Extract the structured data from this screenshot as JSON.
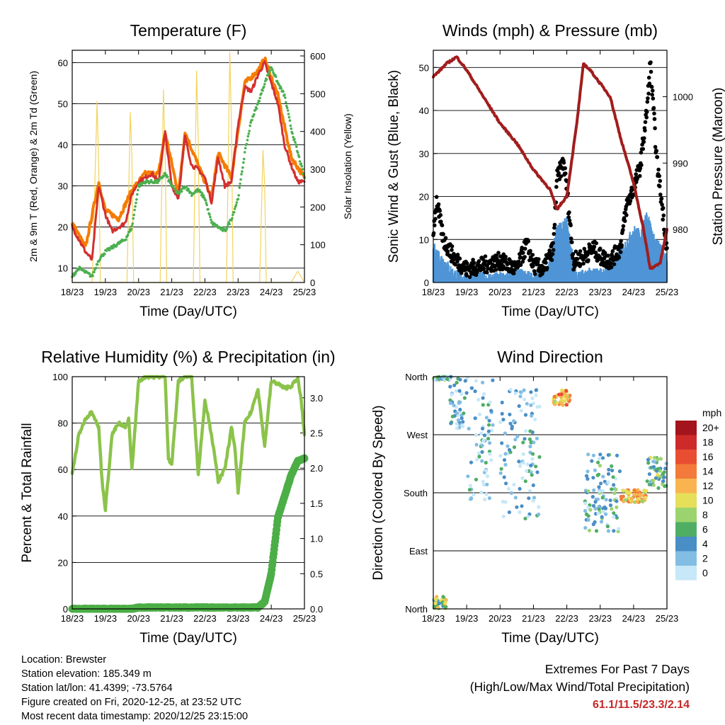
{
  "info": {
    "location": "Location: Brewster",
    "elevation": "Station elevation: 185.349 m",
    "latlon": "Station lat/lon: 41.4399; -73.5764",
    "created": "Figure created on Fri, 2020-12-25, at 23:52 UTC",
    "recent": "Most recent data timestamp: 2020/12/25 23:15:00"
  },
  "extremes": {
    "line1": "Extremes For Past 7 Days",
    "line2": "(High/Low/Max Wind/Total Precipitation)",
    "value": "61.1/11.5/23.3/2.14"
  },
  "chart_data": [
    {
      "type": "line",
      "title": "Temperature (F)",
      "xlabel": "Time (Day/UTC)",
      "ylabel": "2m & 9m T (Red, Orange) & 2m Td (Green)",
      "y2label": "Solar Insolation (Yellow)",
      "x_ticks": [
        "18/23",
        "19/23",
        "20/23",
        "21/23",
        "22/23",
        "23/23",
        "24/23",
        "25/23"
      ],
      "ylim": [
        6.5,
        63
      ],
      "y_ticks": [
        10,
        20,
        30,
        40,
        50,
        60
      ],
      "y2lim": [
        0,
        615
      ],
      "y2_ticks": [
        0,
        100,
        200,
        300,
        400,
        500,
        600
      ],
      "grid": true,
      "series": [
        {
          "name": "2m T",
          "color": "#d32f2f",
          "axis": "y",
          "x": [
            0,
            0.2,
            0.4,
            0.6,
            0.8,
            1,
            1.2,
            1.4,
            1.6,
            1.8,
            2,
            2.2,
            2.4,
            2.6,
            2.8,
            3,
            3.2,
            3.4,
            3.6,
            3.8,
            4,
            4.2,
            4.4,
            4.6,
            4.8,
            5,
            5.2,
            5.4,
            5.6,
            5.8,
            6,
            6.2,
            6.4,
            6.6,
            6.8,
            7
          ],
          "values": [
            20,
            17,
            14,
            12,
            30,
            23,
            19,
            20,
            21,
            28,
            31,
            32,
            33,
            31,
            43,
            30,
            27,
            42,
            35,
            34,
            32,
            26,
            37,
            30,
            31,
            45,
            54,
            53,
            57,
            60,
            55,
            50,
            40,
            35,
            31,
            31
          ]
        },
        {
          "name": "9m T",
          "color": "#f57c00",
          "axis": "y",
          "x": [
            0,
            0.4,
            0.8,
            1,
            1.4,
            1.8,
            2.2,
            2.6,
            2.8,
            3.2,
            3.4,
            3.8,
            4.2,
            4.4,
            4.8,
            5.2,
            5.6,
            5.8,
            6.2,
            6.6,
            7
          ],
          "values": [
            21,
            15,
            31,
            24,
            22,
            29,
            33,
            33,
            43,
            28,
            43,
            35,
            27,
            38,
            32,
            55,
            58,
            61,
            52,
            37,
            32
          ]
        },
        {
          "name": "2m Td",
          "color": "#4caf50",
          "axis": "y",
          "x": [
            0,
            0.2,
            0.4,
            0.6,
            0.8,
            1,
            1.4,
            1.6,
            1.8,
            2,
            2.2,
            2.4,
            2.6,
            2.8,
            3,
            3.2,
            3.4,
            3.6,
            3.8,
            4,
            4.2,
            4.4,
            4.6,
            4.8,
            5,
            5.2,
            5.4,
            5.6,
            5.8,
            6,
            6.2,
            6.4,
            6.6,
            6.8,
            7
          ],
          "values": [
            8,
            10,
            9,
            8,
            12,
            14,
            16,
            17,
            20,
            30,
            31,
            31,
            31,
            33,
            30,
            28,
            30,
            28,
            29,
            27,
            21,
            20,
            19,
            22,
            27,
            38,
            46,
            50,
            55,
            59,
            55,
            52,
            44,
            38,
            32
          ]
        },
        {
          "name": "Solar Insolation",
          "color": "#f3d35b",
          "axis": "y2",
          "x": [
            0,
            0.6,
            0.75,
            0.8,
            0.85,
            1,
            1.65,
            1.75,
            1.8,
            1.85,
            2,
            2.65,
            2.75,
            2.8,
            2.85,
            3,
            3.65,
            3.75,
            3.8,
            3.85,
            4,
            4.65,
            4.75,
            4.8,
            4.85,
            5,
            5.65,
            5.75,
            5.8,
            5.85,
            6,
            6.6,
            6.8,
            7
          ],
          "values": [
            0,
            0,
            480,
            300,
            0,
            0,
            0,
            450,
            330,
            0,
            0,
            0,
            510,
            350,
            0,
            0,
            0,
            560,
            370,
            0,
            0,
            0,
            610,
            420,
            0,
            0,
            0,
            350,
            260,
            0,
            0,
            0,
            30,
            0
          ]
        }
      ]
    },
    {
      "type": "line",
      "title": "Winds (mph) & Pressure (mb)",
      "xlabel": "Time (Day/UTC)",
      "ylabel": "Sonic Wind & Gust (Blue, Black)",
      "y2label": "Station Pressure (Maroon)",
      "x_ticks": [
        "18/23",
        "19/23",
        "20/23",
        "21/23",
        "22/23",
        "23/23",
        "24/23",
        "25/23"
      ],
      "ylim": [
        0,
        54
      ],
      "y_ticks": [
        0,
        10,
        20,
        30,
        40,
        50
      ],
      "y2lim": [
        972,
        1007
      ],
      "y2_ticks": [
        980,
        990,
        1000
      ],
      "grid": true,
      "series": [
        {
          "name": "Station Pressure",
          "color": "#a11d1d",
          "axis": "y2",
          "x": [
            0,
            0.4,
            0.7,
            1,
            1.5,
            2,
            2.5,
            3,
            3.5,
            3.7,
            4,
            4.3,
            4.5,
            4.7,
            5,
            5.3,
            5.6,
            6,
            6.3,
            6.5,
            6.8,
            7
          ],
          "values": [
            1003,
            1005,
            1006,
            1004,
            1000,
            996,
            993,
            989,
            986,
            983,
            985,
            996,
            1005,
            1004,
            1002,
            1000,
            994,
            987,
            980,
            974,
            975,
            980
          ]
        },
        {
          "name": "Sonic Wind",
          "color": "#4f95d6",
          "axis": "y",
          "x": [
            0,
            0.3,
            0.6,
            1,
            1.5,
            2,
            2.5,
            3,
            3.4,
            3.7,
            4,
            4.3,
            4.6,
            5,
            5.4,
            5.8,
            6,
            6.2,
            6.4,
            6.6,
            6.8,
            7
          ],
          "values": [
            8,
            5,
            2,
            1,
            1,
            1,
            2,
            1,
            2,
            12,
            14,
            1,
            2,
            2,
            4,
            9,
            12,
            11,
            16,
            10,
            8,
            5
          ]
        },
        {
          "name": "Gust",
          "color": "#000000",
          "axis": "y",
          "x": [
            0,
            0.1,
            0.3,
            0.6,
            1,
            1.5,
            2,
            2.5,
            2.8,
            3,
            3.3,
            3.6,
            3.7,
            3.9,
            4,
            4.2,
            4.5,
            4.8,
            5,
            5.3,
            5.6,
            5.8,
            6,
            6.2,
            6.4,
            6.5,
            6.7,
            6.9,
            7
          ],
          "values": [
            12,
            19,
            10,
            6,
            3,
            4,
            5,
            3,
            9,
            4,
            3,
            8,
            24,
            28,
            22,
            5,
            6,
            8,
            6,
            5,
            8,
            18,
            22,
            27,
            40,
            51,
            28,
            15,
            8
          ]
        }
      ]
    },
    {
      "type": "line",
      "title": "Relative Humidity (%) & Precipitation (in)",
      "xlabel": "Time (Day/UTC)",
      "ylabel": "Percent & Total Rainfall",
      "x_ticks": [
        "18/23",
        "19/23",
        "20/23",
        "21/23",
        "22/23",
        "23/23",
        "24/23",
        "25/23"
      ],
      "ylim": [
        0,
        100
      ],
      "y_ticks": [
        0,
        20,
        40,
        60,
        80,
        100
      ],
      "y2lim": [
        0,
        3.3
      ],
      "y2_ticks": [
        "0.0",
        "0.5",
        "1.0",
        "1.5",
        "2.0",
        "2.5",
        "3.0"
      ],
      "grid": true,
      "series": [
        {
          "name": "Relative Humidity",
          "color": "#8bc34a",
          "axis": "y",
          "x": [
            0,
            0.2,
            0.4,
            0.6,
            0.8,
            0.9,
            1,
            1.2,
            1.4,
            1.6,
            1.7,
            1.8,
            2,
            2.2,
            2.4,
            2.6,
            2.8,
            2.9,
            3,
            3.2,
            3.4,
            3.6,
            3.8,
            4,
            4.2,
            4.4,
            4.6,
            4.8,
            4.9,
            5,
            5.2,
            5.4,
            5.6,
            5.8,
            6,
            6.2,
            6.4,
            6.6,
            6.8,
            6.9,
            7
          ],
          "values": [
            58,
            75,
            82,
            85,
            78,
            55,
            43,
            75,
            80,
            78,
            82,
            60,
            98,
            100,
            100,
            100,
            100,
            65,
            62,
            98,
            100,
            100,
            58,
            90,
            75,
            55,
            60,
            78,
            70,
            50,
            80,
            85,
            95,
            70,
            98,
            97,
            95,
            96,
            99,
            90,
            75
          ]
        },
        {
          "name": "Total Precipitation",
          "color": "#4cae46",
          "axis": "y2",
          "x": [
            0,
            1,
            1.8,
            2,
            3,
            4,
            5,
            5.6,
            5.8,
            6,
            6.1,
            6.2,
            6.4,
            6.6,
            6.8,
            7
          ],
          "values": [
            0,
            0,
            0,
            0.02,
            0.02,
            0.02,
            0.02,
            0.02,
            0.1,
            0.5,
            0.9,
            1.3,
            1.6,
            1.9,
            2.1,
            2.14
          ]
        }
      ]
    },
    {
      "type": "scatter",
      "title": "Wind Direction",
      "xlabel": "Time (Day/UTC)",
      "ylabel": "Direction (Colored By Speed)",
      "x_ticks": [
        "18/23",
        "19/23",
        "20/23",
        "21/23",
        "22/23",
        "23/23",
        "24/23",
        "25/23"
      ],
      "y_ticks": [
        "North",
        "West",
        "South",
        "East",
        "North"
      ],
      "grid": true,
      "colorbar_title": "mph",
      "colorbar_labels": [
        "20+",
        "18",
        "16",
        "14",
        "12",
        "10",
        "8",
        "6",
        "4",
        "2",
        "0"
      ],
      "colorbar_colors": [
        "#a3141c",
        "#cf2a2a",
        "#e94e33",
        "#f37a3a",
        "#f9b450",
        "#e6df5a",
        "#9bd46e",
        "#4fae63",
        "#4a8ec6",
        "#82bde3",
        "#c6e8f8"
      ],
      "clusters": [
        {
          "x": [
            0.0,
            0.5
          ],
          "dir": [
            355,
            360
          ],
          "speed": "4"
        },
        {
          "x": [
            0.5,
            1.0
          ],
          "dir": [
            280,
            360
          ],
          "speed": "2"
        },
        {
          "x": [
            1.0,
            1.8
          ],
          "dir": [
            160,
            360
          ],
          "speed": "2"
        },
        {
          "x": [
            2.0,
            3.2
          ],
          "dir": [
            140,
            340
          ],
          "speed": "2"
        },
        {
          "x": [
            3.6,
            4.1
          ],
          "dir": [
            315,
            340
          ],
          "speed": "12"
        },
        {
          "x": [
            4.5,
            5.6
          ],
          "dir": [
            120,
            240
          ],
          "speed": "4"
        },
        {
          "x": [
            5.6,
            6.4
          ],
          "dir": [
            165,
            185
          ],
          "speed": "12"
        },
        {
          "x": [
            6.4,
            7.0
          ],
          "dir": [
            185,
            235
          ],
          "speed": "6"
        },
        {
          "x": [
            0.0,
            0.4
          ],
          "dir": [
            0,
            20
          ],
          "speed": "8"
        }
      ]
    }
  ]
}
